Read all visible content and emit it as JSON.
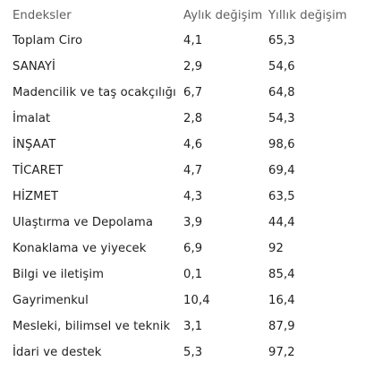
{
  "table": {
    "headers": [
      "Endeksler",
      "Aylık değişim",
      "Yıllık değişim"
    ],
    "rows": [
      {
        "name": "Toplam Ciro",
        "monthly": "4,1",
        "yearly": "65,3"
      },
      {
        "name": "SANAYİ",
        "monthly": "2,9",
        "yearly": "54,6"
      },
      {
        "name": "Madencilik ve taş ocakçılığı",
        "monthly": "6,7",
        "yearly": "64,8"
      },
      {
        "name": "İmalat",
        "monthly": "2,8",
        "yearly": "54,3"
      },
      {
        "name": "İNŞAAT",
        "monthly": "4,6",
        "yearly": "98,6"
      },
      {
        "name": "TİCARET",
        "monthly": "4,7",
        "yearly": "69,4"
      },
      {
        "name": "HİZMET",
        "monthly": "4,3",
        "yearly": "63,5"
      },
      {
        "name": "Ulaştırma ve Depolama",
        "monthly": "3,9",
        "yearly": "44,4"
      },
      {
        "name": "Konaklama ve yiyecek",
        "monthly": "6,9",
        "yearly": "92"
      },
      {
        "name": "Bilgi ve iletişim",
        "monthly": "0,1",
        "yearly": "85,4"
      },
      {
        "name": "Gayrimenkul",
        "monthly": "10,4",
        "yearly": "16,4"
      },
      {
        "name": "Mesleki, bilimsel ve teknik",
        "monthly": "3,1",
        "yearly": "87,9"
      },
      {
        "name": "İdari ve destek",
        "monthly": "5,3",
        "yearly": "97,2"
      }
    ]
  }
}
